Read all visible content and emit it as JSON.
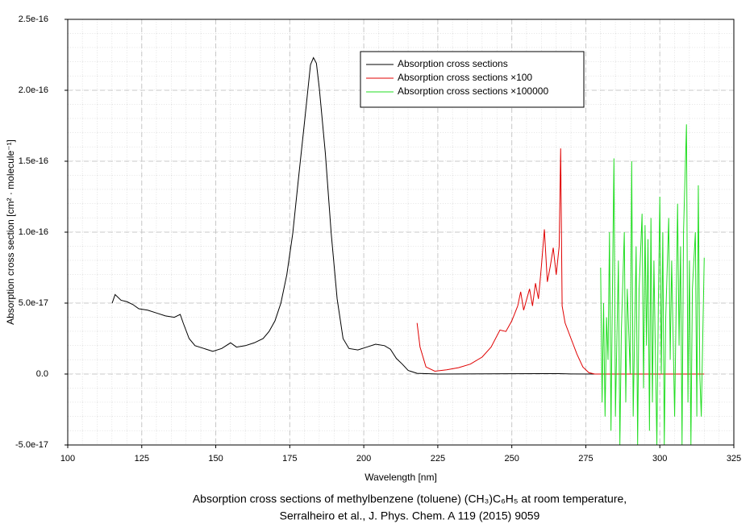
{
  "chart_data": {
    "type": "line",
    "xlabel": "Wavelength [nm]",
    "ylabel": "Absorption cross section [cm² · molecule⁻¹]",
    "caption": [
      "Absorption cross sections of methylbenzene (toluene) (CH₃)C₆H₅ at room temperature,",
      "Serralheiro et al., J. Phys. Chem. A 119 (2015) 9059"
    ],
    "xlim": [
      100,
      325
    ],
    "xticks": [
      100,
      125,
      150,
      175,
      200,
      225,
      250,
      275,
      300,
      325
    ],
    "ylim": [
      -5e-17,
      2.5e-16
    ],
    "yticks": [
      {
        "value": -5e-17,
        "label": "-5.0e-17"
      },
      {
        "value": 0,
        "label": "0.0"
      },
      {
        "value": 5e-17,
        "label": "5.0e-17"
      },
      {
        "value": 1e-16,
        "label": "1.0e-16"
      },
      1.5e-16,
      {
        "value": 2e-16,
        "label": "2.0e-16"
      },
      2.5e-16
    ],
    "grid": true,
    "legend": "upper right",
    "series": [
      {
        "name": "Absorption cross sections",
        "color": "#000000",
        "x": [
          115,
          116,
          118,
          120,
          122,
          124,
          127,
          130,
          133,
          136,
          138,
          139,
          141,
          143,
          146,
          149,
          152,
          155,
          157,
          160,
          163,
          166,
          168,
          170,
          172,
          174,
          176,
          178,
          180,
          182,
          183,
          184,
          185,
          187,
          189,
          191,
          193,
          195,
          198,
          201,
          204,
          207,
          209,
          211,
          213,
          215,
          218,
          225,
          250,
          260,
          266,
          270,
          278
        ],
        "values": [
          5e-17,
          5.6e-17,
          5.2e-17,
          5.1e-17,
          4.9e-17,
          4.6e-17,
          4.5e-17,
          4.3e-17,
          4.1e-17,
          4e-17,
          4.2e-17,
          3.6e-17,
          2.5e-17,
          2e-17,
          1.8e-17,
          1.6e-17,
          1.8e-17,
          2.2e-17,
          1.9e-17,
          2e-17,
          2.2e-17,
          2.5e-17,
          3e-17,
          3.75e-17,
          5e-17,
          7e-17,
          9.9e-17,
          1.39e-16,
          1.78e-16,
          2.18e-16,
          2.23e-16,
          2.19e-16,
          2.01e-16,
          1.56e-16,
          9.9e-17,
          5.3e-17,
          2.5e-17,
          1.8e-17,
          1.7e-17,
          1.9e-17,
          2.1e-17,
          2e-17,
          1.75e-17,
          1.1e-17,
          7e-18,
          2.5e-18,
          5e-19,
          0,
          2e-19,
          3e-19,
          3e-19,
          1e-19,
          0
        ]
      },
      {
        "name": "Absorption cross sections ×100",
        "color": "#e00000",
        "x": [
          218,
          219,
          221,
          224,
          228,
          232,
          236,
          240,
          243,
          246,
          248,
          250,
          252,
          253,
          254,
          256,
          257,
          258,
          259,
          260,
          261,
          262,
          263,
          264,
          265,
          266,
          266.5,
          267,
          268,
          270,
          272,
          274,
          276,
          278,
          315
        ],
        "values": [
          3.6e-17,
          1.9e-17,
          5e-18,
          2e-18,
          3e-18,
          4.5e-18,
          7e-18,
          1.2e-17,
          1.9e-17,
          3.1e-17,
          3e-17,
          3.75e-17,
          4.8e-17,
          5.8e-17,
          4.5e-17,
          6e-17,
          4.8e-17,
          6.4e-17,
          5.3e-17,
          7.6e-17,
          1.02e-16,
          6.5e-17,
          7.6e-17,
          8.9e-17,
          7e-17,
          9e-17,
          1.59e-16,
          4.8e-17,
          3.6e-17,
          2.5e-17,
          1.4e-17,
          5e-18,
          1e-18,
          0,
          0
        ]
      },
      {
        "name": "Absorption cross sections ×100000",
        "color": "#22dd22",
        "x": [
          280,
          280.5,
          281,
          281.5,
          282,
          282.5,
          283,
          283.5,
          284,
          284.5,
          285,
          286,
          286.5,
          287,
          288,
          288.5,
          289,
          290,
          290.5,
          291,
          292,
          292.5,
          293,
          294,
          294.5,
          295,
          295.5,
          296,
          296.5,
          297,
          297.5,
          298,
          299,
          299.5,
          300,
          300.5,
          301,
          301.5,
          302,
          303,
          303.5,
          304,
          305,
          306,
          306.5,
          307,
          307.5,
          308,
          309,
          309.5,
          310,
          310.5,
          311,
          312,
          312.5,
          313,
          313.5,
          314,
          315
        ],
        "values": [
          7.5e-17,
          -2e-17,
          5e-17,
          -3e-17,
          4e-17,
          1e-17,
          1e-16,
          -4e-17,
          6e-17,
          1.52e-16,
          -3e-17,
          8e-17,
          -5e-17,
          3e-17,
          1e-16,
          -2e-17,
          6e-17,
          0,
          1.5e-16,
          -3e-17,
          9e-17,
          -5e-17,
          6e-17,
          1.13e-16,
          -1e-17,
          1.05e-16,
          2e-17,
          9.5e-17,
          -4e-17,
          1.1e-16,
          -2e-17,
          8e-17,
          -5e-17,
          5e-17,
          1.25e-16,
          0,
          1e-16,
          -5e-17,
          4e-17,
          1.1e-16,
          1e-17,
          8e-17,
          -3e-17,
          1.2e-16,
          2e-17,
          9e-17,
          -5e-17,
          1e-16,
          1.76e-16,
          -2e-17,
          8e-17,
          -5e-17,
          6e-17,
          1e-16,
          -3e-17,
          1.33e-16,
          0,
          -3e-17,
          8.2e-17
        ]
      }
    ]
  }
}
